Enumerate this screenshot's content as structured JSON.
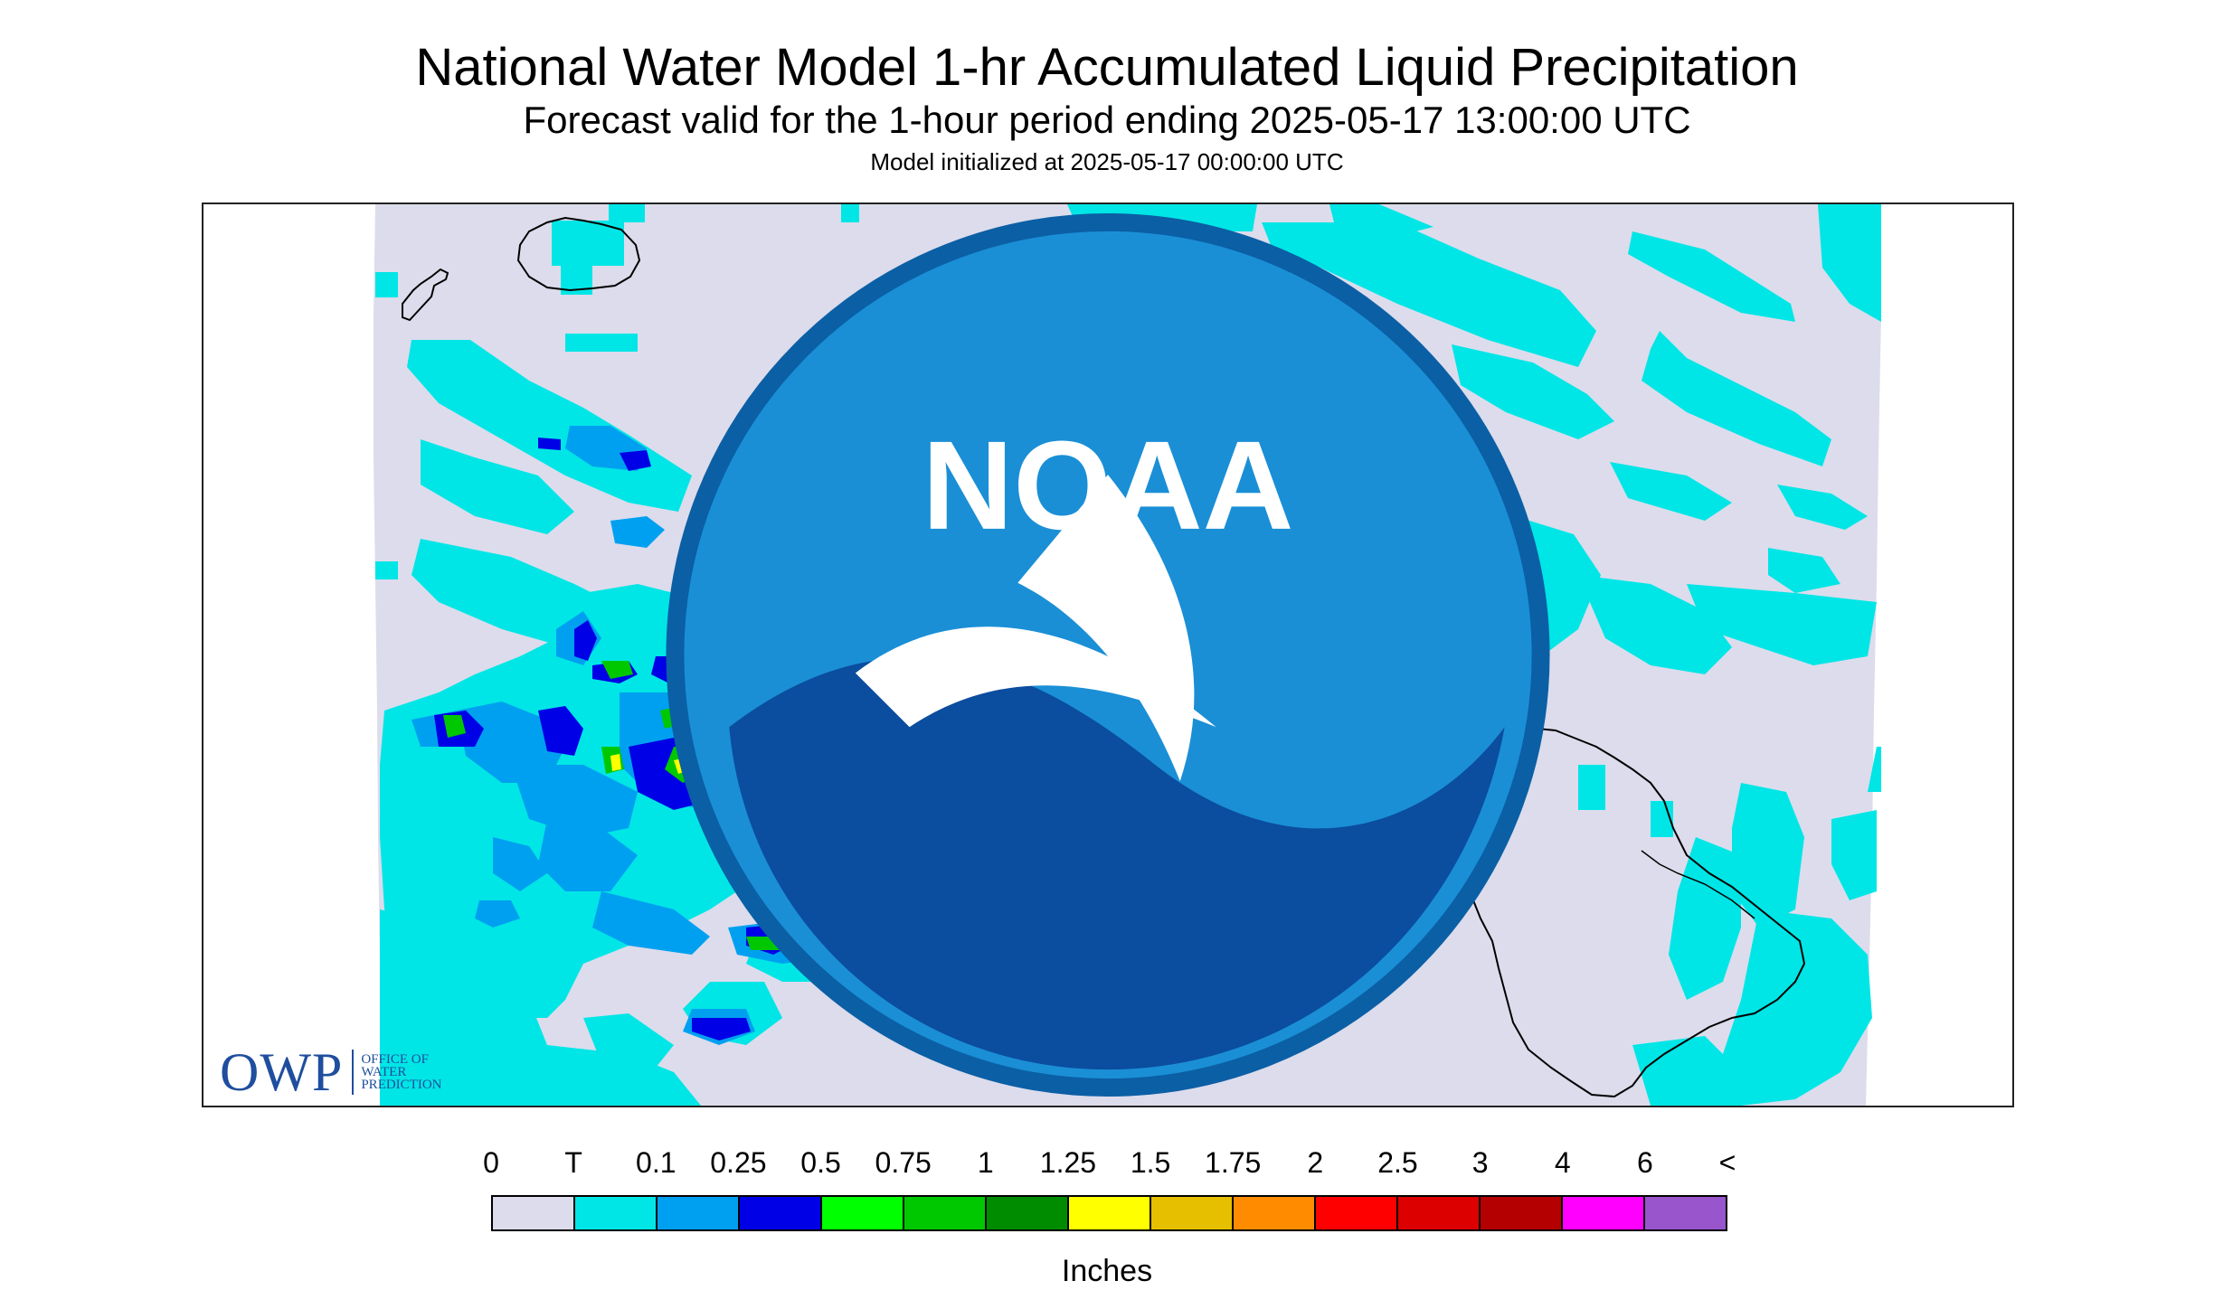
{
  "header": {
    "title": "National Water Model 1-hr Accumulated Liquid Precipitation",
    "subtitle": "Forecast valid for the 1-hour period ending 2025-05-17 13:00:00 UTC",
    "init": "Model initialized at 2025-05-17 00:00:00 UTC"
  },
  "logos": {
    "owp_letters": "OWP",
    "owp_line1": "OFFICE OF",
    "owp_line2": "WATER",
    "owp_line3": "PREDICTION",
    "noaa_text": "NOAA"
  },
  "legend": {
    "labels": [
      "0",
      "T",
      "0.1",
      "0.25",
      "0.5",
      "0.75",
      "1",
      "1.25",
      "1.5",
      "1.75",
      "2",
      "2.5",
      "3",
      "4",
      "6",
      "<"
    ],
    "colors": [
      "#dcdcec",
      "#00e6e6",
      "#00a0f0",
      "#0000e6",
      "#00ff00",
      "#00c800",
      "#008c00",
      "#ffff00",
      "#e6c000",
      "#ff8c00",
      "#ff0000",
      "#dc0000",
      "#b40000",
      "#ff00ff",
      "#9955cc"
    ],
    "units": "Inches"
  }
}
